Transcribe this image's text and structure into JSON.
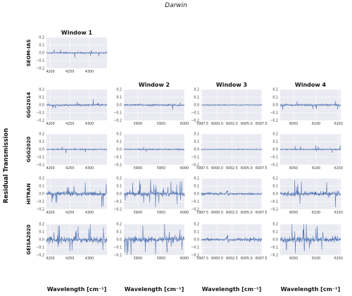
{
  "figure": {
    "title": "Darwin",
    "ylabel": "Residual Transmission",
    "xlabel": "Wavelength [cm⁻¹]"
  },
  "colors": {
    "background": "#eaeaf2",
    "series": "#4c72b0",
    "series_alt": "#dd8452"
  },
  "chart_data": {
    "type": "line",
    "title": "Darwin",
    "ylabel": "Residual Transmission",
    "xlabel": "Wavelength [cm⁻¹]",
    "ylim": [
      -0.2,
      0.2
    ],
    "yticks": [
      -0.2,
      -0.1,
      0.0,
      0.1,
      0.2
    ],
    "ytick_labels": [
      "−0.2",
      "−0.1",
      "0.0",
      "0.1",
      "0.2"
    ],
    "grid": true,
    "rows": [
      "SEOM-IAS",
      "GGG2014",
      "GGG2020",
      "HITRAN",
      "GEISA2020"
    ],
    "columns": [
      {
        "title": "Window 1",
        "xlim": [
          4190,
          4345
        ],
        "xticks": [
          4200,
          4250,
          4300
        ],
        "xtick_labels": [
          "4200",
          "4250",
          "4300"
        ],
        "rows_present": [
          0,
          1,
          2,
          3,
          4
        ]
      },
      {
        "title": "Window 2",
        "xlim": [
          5870,
          6000
        ],
        "xticks": [
          5900,
          5950,
          6000
        ],
        "xtick_labels": [
          "5900",
          "5950",
          "6000"
        ],
        "rows_present": [
          1,
          2,
          3,
          4
        ]
      },
      {
        "title": "Window 3",
        "xlim": [
          5997.3,
          6007.6
        ],
        "xticks": [
          5997.5,
          6000.0,
          6002.5,
          6005.0,
          6007.5
        ],
        "xtick_labels": [
          "5997.5",
          "6000.0",
          "6002.5",
          "6005.0",
          "6007.5"
        ],
        "rows_present": [
          1,
          2,
          3,
          4
        ]
      },
      {
        "title": "Window 4",
        "xlim": [
          6020,
          6155
        ],
        "xticks": [
          6050,
          6100,
          6150
        ],
        "xtick_labels": [
          "6050",
          "6100",
          "6150"
        ],
        "rows_present": [
          1,
          2,
          3,
          4
        ]
      }
    ],
    "residual_amplitude": {
      "SEOM-IAS": 0.012,
      "GGG2014": 0.014,
      "GGG2020": 0.01,
      "HITRAN": 0.035,
      "GEISA2020": 0.045
    }
  }
}
